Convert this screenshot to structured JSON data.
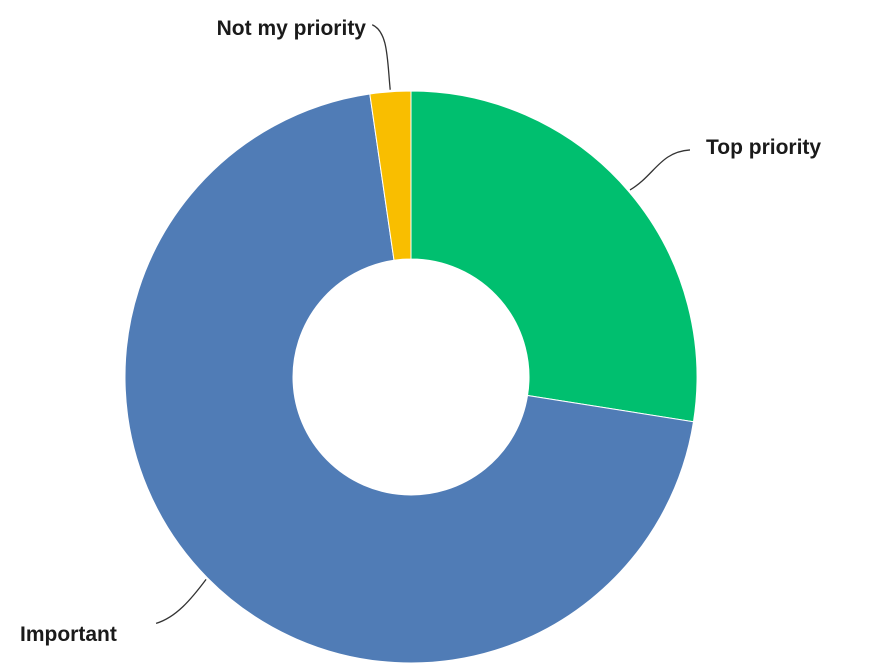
{
  "chart_data": {
    "type": "pie",
    "variant": "donut",
    "title": "",
    "categories": [
      "Top priority",
      "Important",
      "Not my priority"
    ],
    "values": [
      27.5,
      70.2,
      2.3
    ],
    "colors": [
      "#00BF6F",
      "#507CB6",
      "#F9BE00"
    ],
    "legend": "none",
    "labels_outside_with_leader_lines": true
  }
}
